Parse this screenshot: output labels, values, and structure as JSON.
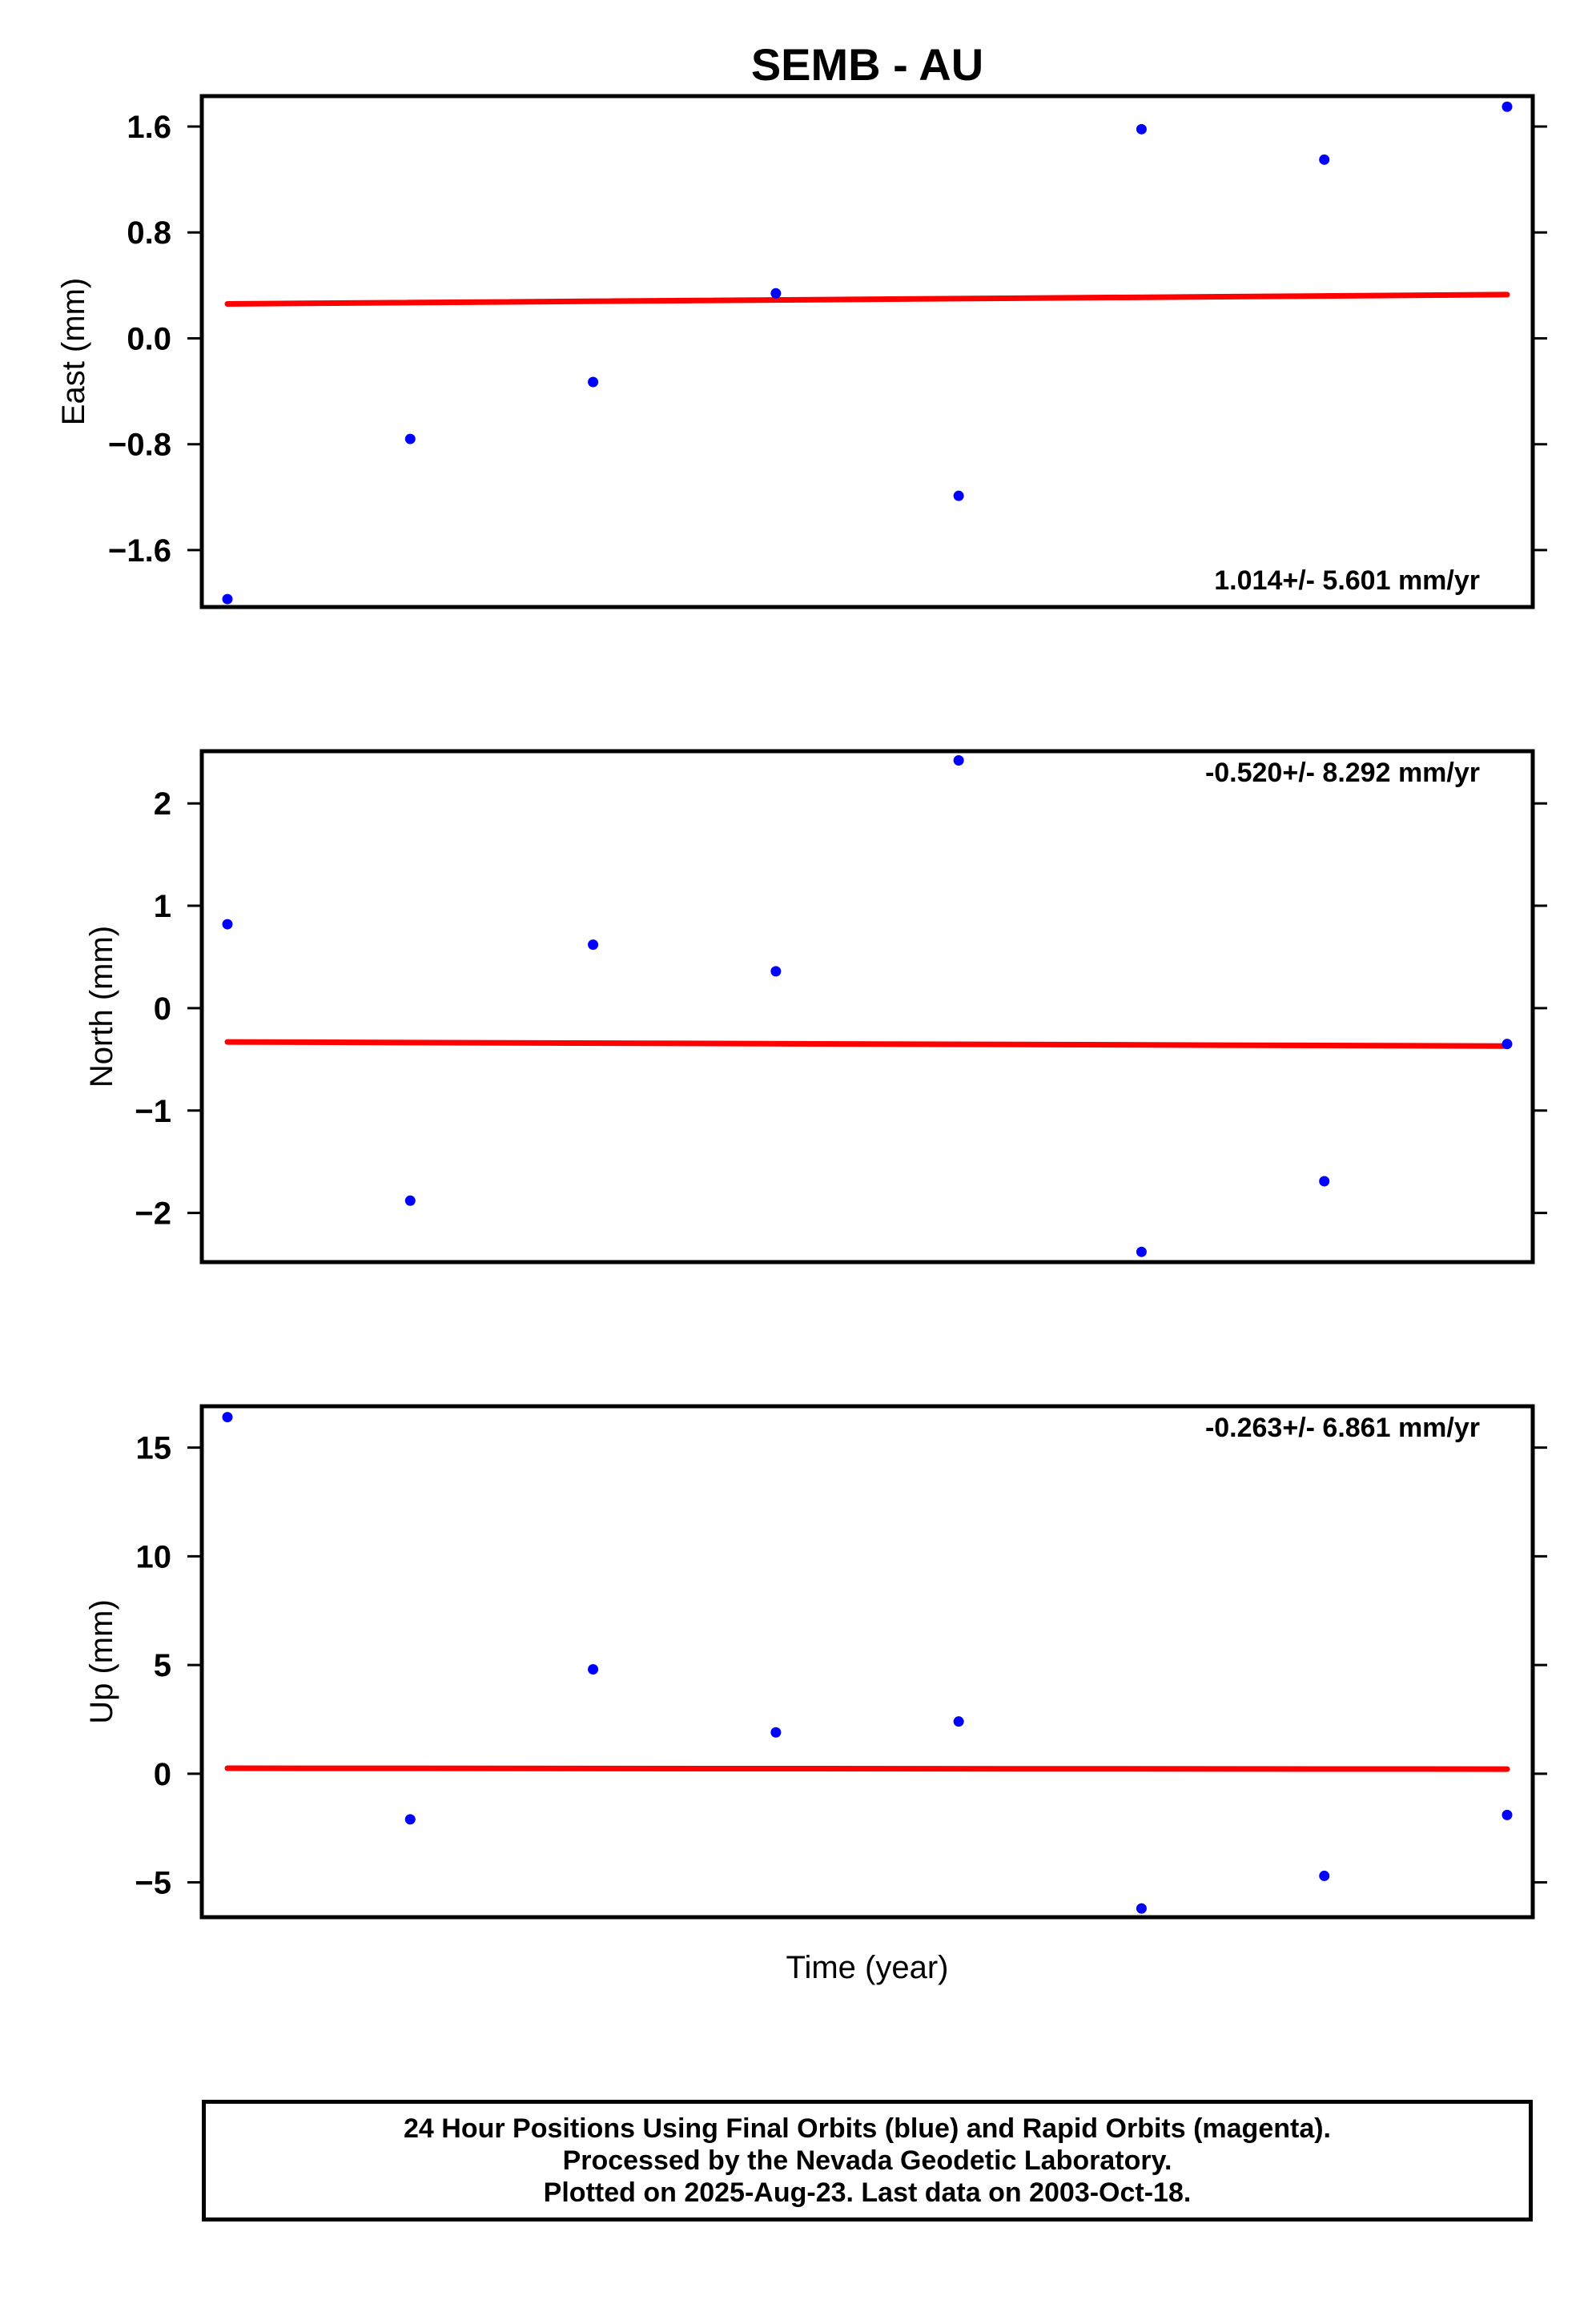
{
  "title": "SEMB - AU",
  "xlabel": "Time (year)",
  "colors": {
    "final_orbits": "#0000ff",
    "trend": "#ff0000",
    "frame": "#000000"
  },
  "caption": [
    "24 Hour Positions Using Final Orbits (blue) and Rapid Orbits (magenta).",
    "Processed by the Nevada Geodetic Laboratory.",
    "Plotted on 2025-Aug-23. Last data on 2003-Oct-18."
  ],
  "chart_data": [
    {
      "type": "scatter",
      "panel": "east",
      "ylabel": "East (mm)",
      "ylim": [
        -2.03,
        1.83
      ],
      "yticks": [
        1.6,
        0.8,
        0.0,
        -0.8,
        -1.6
      ],
      "ytick_labels": [
        "1.6",
        "0.8",
        "0.0",
        "−0.8",
        "−1.6"
      ],
      "rate_label": "1.014+/- 5.601 mm/yr",
      "rate_position": "bottom-right",
      "x": [
        0,
        1,
        2,
        3,
        4,
        5,
        6,
        7
      ],
      "values": [
        -1.97,
        -0.76,
        -0.33,
        0.34,
        -1.19,
        1.58,
        1.35,
        1.75
      ],
      "trend": [
        0.26,
        0.33
      ]
    },
    {
      "type": "scatter",
      "panel": "north",
      "ylabel": "North (mm)",
      "ylim": [
        -2.48,
        2.51
      ],
      "yticks": [
        2,
        1,
        0,
        -1,
        -2
      ],
      "ytick_labels": [
        "2",
        "1",
        "0",
        "−1",
        "−2"
      ],
      "rate_label": "-0.520+/- 8.292 mm/yr",
      "rate_position": "top-right",
      "x": [
        0,
        1,
        2,
        3,
        4,
        5,
        6,
        7
      ],
      "values": [
        0.82,
        -1.88,
        0.62,
        0.36,
        2.42,
        -2.38,
        -1.69,
        -0.35
      ],
      "trend": [
        -0.33,
        -0.37
      ]
    },
    {
      "type": "scatter",
      "panel": "up",
      "ylabel": "Up (mm)",
      "ylim": [
        -6.6,
        16.9
      ],
      "yticks": [
        15,
        10,
        5,
        0,
        -5
      ],
      "ytick_labels": [
        "15",
        "10",
        "5",
        "0",
        "−5"
      ],
      "rate_label": "-0.263+/- 6.861 mm/yr",
      "rate_position": "top-right",
      "x": [
        0,
        1,
        2,
        3,
        4,
        5,
        6,
        7
      ],
      "values": [
        16.4,
        -2.1,
        4.8,
        1.9,
        2.4,
        -6.2,
        -4.7,
        -1.9
      ],
      "trend": [
        0.25,
        0.21
      ]
    }
  ]
}
